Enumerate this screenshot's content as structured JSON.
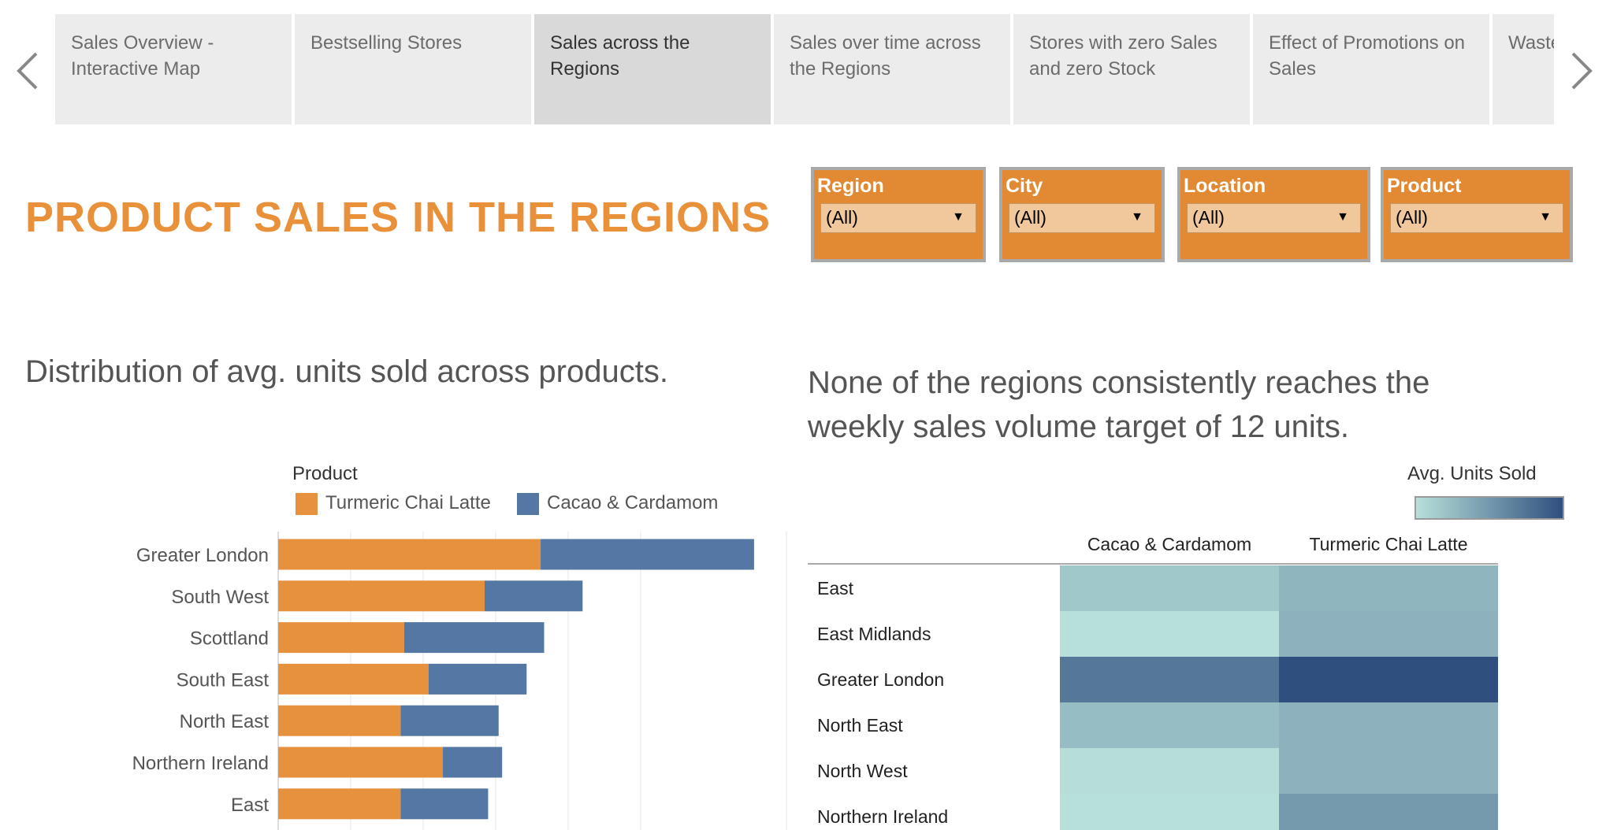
{
  "nav": {
    "prev_icon": "chevron-left-icon",
    "next_icon": "chevron-right-icon"
  },
  "tabs": [
    {
      "label": "Sales Overview - Interactive Map",
      "active": false
    },
    {
      "label": "Bestselling Stores",
      "active": false
    },
    {
      "label": "Sales across the Regions",
      "active": true
    },
    {
      "label": "Sales over time across the Regions",
      "active": false
    },
    {
      "label": "Stores with zero Sales and zero Stock",
      "active": false
    },
    {
      "label": "Effect of Promotions on Sales",
      "active": false
    },
    {
      "label": "Waste Interactive",
      "active": false
    }
  ],
  "page_title": "PRODUCT SALES IN THE REGIONS",
  "filters": [
    {
      "label": "Region",
      "value": "(All)"
    },
    {
      "label": "City",
      "value": "(All)"
    },
    {
      "label": "Location",
      "value": "(All)"
    },
    {
      "label": "Product",
      "value": "(All)"
    }
  ],
  "colors": {
    "accent": "#e28a33",
    "turmeric": "#e6913e",
    "cacao": "#5577a4",
    "heat_low": "#b8e0da",
    "heat_high": "#2f4f7f"
  },
  "left_heading": "Distribution of avg. units sold across products.",
  "right_heading": "None of the regions consistently reaches the weekly sales volume target of 12 units.",
  "legend": {
    "title": "Product",
    "items": [
      "Turmeric Chai Latte",
      "Cacao & Cardamom"
    ]
  },
  "color_scale_title": "Avg. Units Sold",
  "chart_data": [
    {
      "type": "bar",
      "stacked": true,
      "orientation": "horizontal",
      "categories": [
        "Greater London",
        "South West",
        "Scottland",
        "South East",
        "North East",
        "Northern Ireland",
        "East"
      ],
      "series": [
        {
          "name": "Turmeric Chai Latte",
          "values": [
            7.5,
            5.9,
            3.6,
            4.3,
            3.5,
            4.7,
            3.5
          ]
        },
        {
          "name": "Cacao & Cardamom",
          "values": [
            6.1,
            2.8,
            4.0,
            2.8,
            2.8,
            1.7,
            2.5
          ]
        }
      ],
      "xlim": [
        0,
        14.3
      ],
      "grid": true
    },
    {
      "type": "heatmap",
      "columns": [
        "Cacao & Cardamom",
        "Turmeric Chai Latte"
      ],
      "rows": [
        "East",
        "East Midlands",
        "Greater London",
        "North East",
        "North West",
        "Northern Ireland"
      ],
      "values": [
        [
          4.5,
          5.2
        ],
        [
          3.5,
          5.3
        ],
        [
          7.6,
          9.2
        ],
        [
          4.9,
          5.3
        ],
        [
          3.6,
          5.3
        ],
        [
          3.5,
          6.3
        ]
      ],
      "legend_title": "Avg. Units Sold",
      "legend_placement": "top-right"
    }
  ]
}
